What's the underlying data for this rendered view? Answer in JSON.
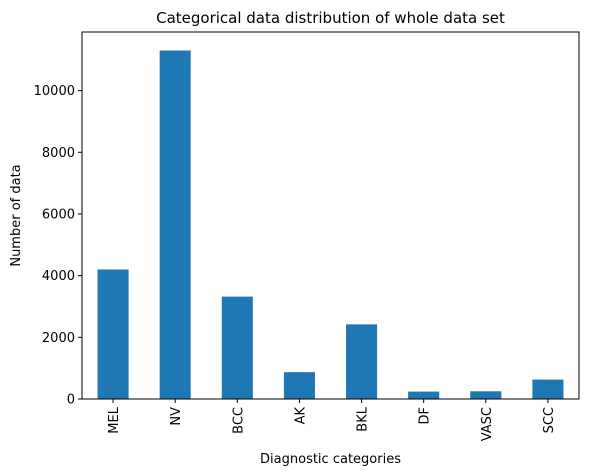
{
  "chart_data": {
    "type": "bar",
    "title": "Categorical data distribution of whole data set",
    "xlabel": "Diagnostic categories",
    "ylabel": "Number of data",
    "categories": [
      "MEL",
      "NV",
      "BCC",
      "AK",
      "BKL",
      "DF",
      "VASC",
      "SCC"
    ],
    "values": [
      4200,
      11300,
      3320,
      870,
      2420,
      240,
      250,
      630
    ],
    "ylim": [
      0,
      11900
    ],
    "yticks": [
      0,
      2000,
      4000,
      6000,
      8000,
      10000
    ],
    "grid": false,
    "bar_color": "#1f77b4",
    "x_tick_rotation": "vertical"
  }
}
